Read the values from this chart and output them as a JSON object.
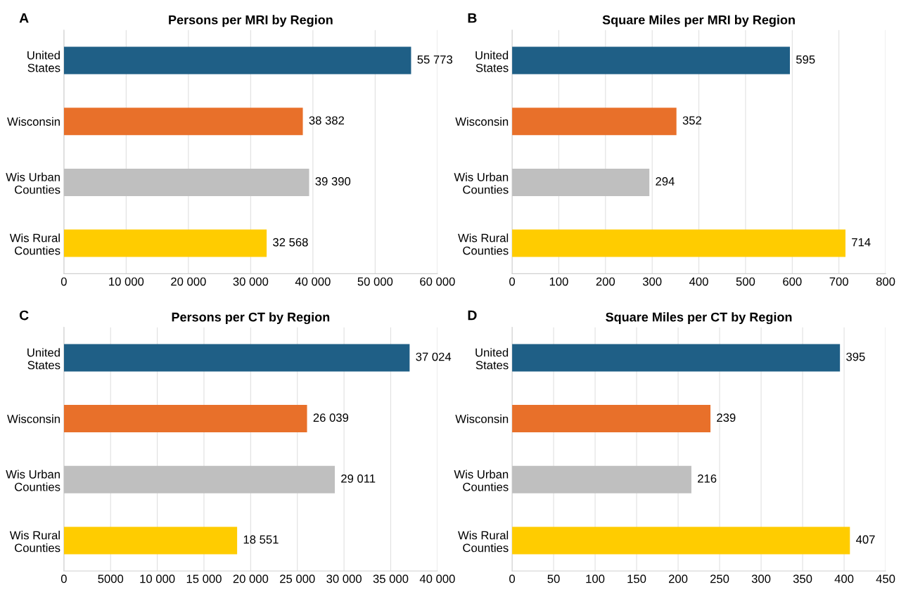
{
  "chart_data": [
    {
      "type": "bar",
      "orientation": "horizontal",
      "title": "Persons per MRI by Region",
      "annotations": [
        "A"
      ],
      "categories": [
        "United\nStates",
        "Wisconsin",
        "Wis Urban\nCounties",
        "Wis Rural\nCounties"
      ],
      "values": [
        55773,
        38382,
        39390,
        32568
      ],
      "value_labels": [
        "55 773",
        "38 382",
        "39 390",
        "32 568"
      ],
      "colors": [
        "#1f5f86",
        "#e8702a",
        "#bfbfbf",
        "#ffcc00"
      ],
      "xlim": [
        0,
        60000
      ],
      "xticks": [
        0,
        {
          "value": 10000,
          "label": "10 000"
        },
        {
          "value": 20000,
          "label": "20 000"
        },
        {
          "value": 30000,
          "label": "30 000"
        },
        {
          "value": 40000,
          "label": "40 000"
        },
        {
          "value": 50000,
          "label": "50 000"
        },
        {
          "value": 60000,
          "label": "60 000"
        }
      ],
      "grid": "x"
    },
    {
      "type": "bar",
      "orientation": "horizontal",
      "title": "Square Miles per MRI by Region",
      "annotations": [
        "B"
      ],
      "categories": [
        "United\nStates",
        "Wisconsin",
        "Wis Urban\nCounties",
        "Wis Rural\nCounties"
      ],
      "values": [
        595,
        352,
        294,
        714
      ],
      "value_labels": [
        "595",
        "352",
        "294",
        "714"
      ],
      "colors": [
        "#1f5f86",
        "#e8702a",
        "#bfbfbf",
        "#ffcc00"
      ],
      "xlim": [
        0,
        800
      ],
      "xticks": [
        0,
        100,
        200,
        300,
        400,
        500,
        600,
        700,
        800
      ],
      "grid": "x"
    },
    {
      "type": "bar",
      "orientation": "horizontal",
      "title": "Persons per CT by Region",
      "annotations": [
        "C"
      ],
      "categories": [
        "United\nStates",
        "Wisconsin",
        "Wis Urban\nCounties",
        "Wis Rural\nCounties"
      ],
      "values": [
        37024,
        26039,
        29011,
        18551
      ],
      "value_labels": [
        "37 024",
        "26 039",
        "29 011",
        "18 551"
      ],
      "colors": [
        "#1f5f86",
        "#e8702a",
        "#bfbfbf",
        "#ffcc00"
      ],
      "xlim": [
        0,
        40000
      ],
      "xticks": [
        0,
        5000,
        {
          "value": 10000,
          "label": "10 000"
        },
        {
          "value": 15000,
          "label": "15 000"
        },
        {
          "value": 20000,
          "label": "20 000"
        },
        {
          "value": 25000,
          "label": "25 000"
        },
        {
          "value": 30000,
          "label": "30 000"
        },
        {
          "value": 35000,
          "label": "35 000"
        },
        {
          "value": 40000,
          "label": "40 000"
        }
      ],
      "grid": "x"
    },
    {
      "type": "bar",
      "orientation": "horizontal",
      "title": "Square Miles per CT by Region",
      "annotations": [
        "D"
      ],
      "categories": [
        "United\nStates",
        "Wisconsin",
        "Wis Urban\nCounties",
        "Wis Rural\nCounties"
      ],
      "values": [
        395,
        239,
        216,
        407
      ],
      "value_labels": [
        "395",
        "239",
        "216",
        "407"
      ],
      "colors": [
        "#1f5f86",
        "#e8702a",
        "#bfbfbf",
        "#ffcc00"
      ],
      "xlim": [
        0,
        450
      ],
      "xticks": [
        0,
        50,
        100,
        150,
        200,
        250,
        300,
        350,
        400,
        450
      ],
      "grid": "x"
    }
  ]
}
